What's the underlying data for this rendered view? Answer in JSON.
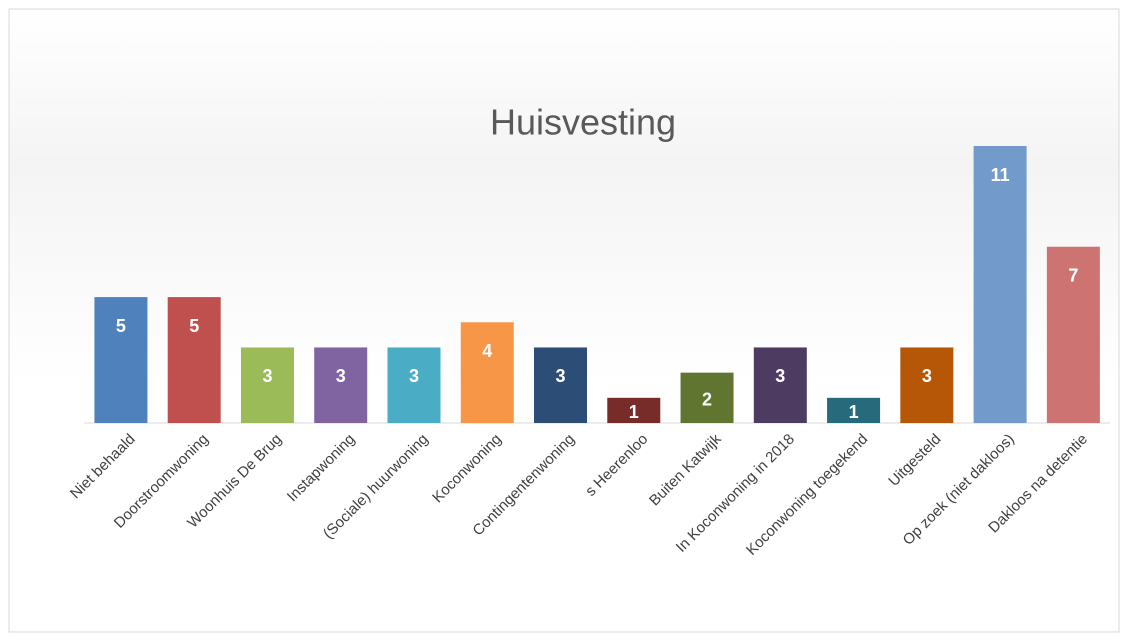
{
  "chart_data": {
    "type": "bar",
    "title": "Huisvesting",
    "categories": [
      "Niet behaald",
      "Doorstroomwoning",
      "Woonhuis De Brug",
      "Instapwoning",
      "(Sociale) huurwoning",
      "Koconwoning",
      "Contingentenwoning",
      "s Heerenloo",
      "Buiten Katwijk",
      "In Koconwoning in 2018",
      "Koconwoning toegekend",
      "Uitgesteld",
      "Op zoek (niet dakloos)",
      "Dakloos na detentie"
    ],
    "values": [
      5,
      5,
      3,
      3,
      3,
      4,
      3,
      1,
      2,
      3,
      1,
      3,
      11,
      7
    ],
    "colors": [
      "#4f81bd",
      "#c0504d",
      "#9bbb59",
      "#8064a2",
      "#4bacc6",
      "#f79646",
      "#2c4d75",
      "#772c2a",
      "#5f7530",
      "#4d3b62",
      "#276a7c",
      "#b65708",
      "#729aca",
      "#cd7371"
    ],
    "ylim": [
      0,
      11
    ]
  }
}
